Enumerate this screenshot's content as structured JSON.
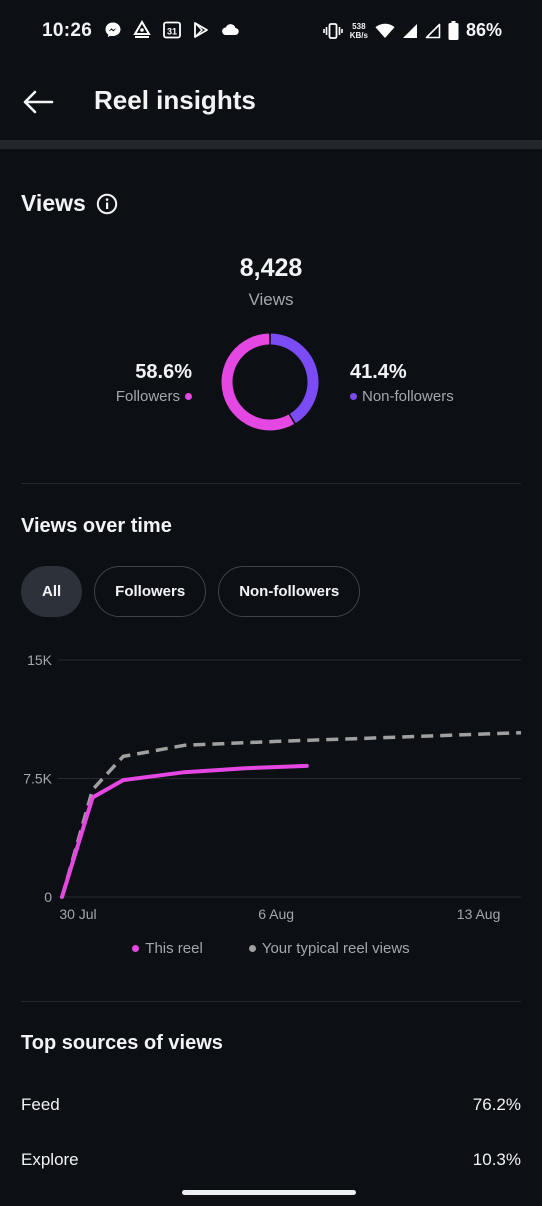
{
  "status_bar": {
    "time": "10:26",
    "network_speed_value": "538",
    "network_speed_unit": "KB/s",
    "calendar_day": "31",
    "battery_percent": "86%"
  },
  "header": {
    "title": "Reel insights"
  },
  "views": {
    "heading": "Views",
    "total": "8,428",
    "total_label": "Views",
    "followers_pct": "58.6%",
    "followers_label": "Followers",
    "nonfollowers_pct": "41.4%",
    "nonfollowers_label": "Non-followers",
    "donut_split": {
      "followers": 58.6,
      "nonfollowers": 41.4
    }
  },
  "views_over_time": {
    "heading": "Views over time",
    "filters": [
      "All",
      "Followers",
      "Non-followers"
    ],
    "selected_filter": "All"
  },
  "colors": {
    "followers": "#e547e3",
    "nonfollowers": "#7b4cf5",
    "typical": "#a0a0a0",
    "background": "#0c0f14"
  },
  "chart_data": {
    "type": "line",
    "y_ticks": [
      "0",
      "7.5K",
      "15K"
    ],
    "ylim": [
      0,
      15000
    ],
    "x_ticks": [
      "30 Jul",
      "6 Aug",
      "13 Aug"
    ],
    "xlim": [
      "2024-07-30",
      "2024-08-14"
    ],
    "grid": true,
    "legend_position": "bottom",
    "series": [
      {
        "name": "This reel",
        "style": "solid",
        "color": "#e547e3",
        "points": [
          [
            "2024-07-30",
            0
          ],
          [
            "2024-07-31",
            6300
          ],
          [
            "2024-08-01",
            7400
          ],
          [
            "2024-08-03",
            7900
          ],
          [
            "2024-08-05",
            8150
          ],
          [
            "2024-08-07",
            8300
          ]
        ]
      },
      {
        "name": "Your typical reel views",
        "style": "dashed",
        "color": "#a0a0a0",
        "points": [
          [
            "2024-07-30",
            0
          ],
          [
            "2024-07-31",
            6800
          ],
          [
            "2024-08-01",
            8900
          ],
          [
            "2024-08-03",
            9600
          ],
          [
            "2024-08-06",
            9850
          ],
          [
            "2024-08-09",
            10050
          ],
          [
            "2024-08-14",
            10400
          ]
        ]
      }
    ]
  },
  "top_sources": {
    "heading": "Top sources of views",
    "rows": [
      {
        "label": "Feed",
        "value": "76.2%"
      },
      {
        "label": "Explore",
        "value": "10.3%"
      }
    ]
  }
}
